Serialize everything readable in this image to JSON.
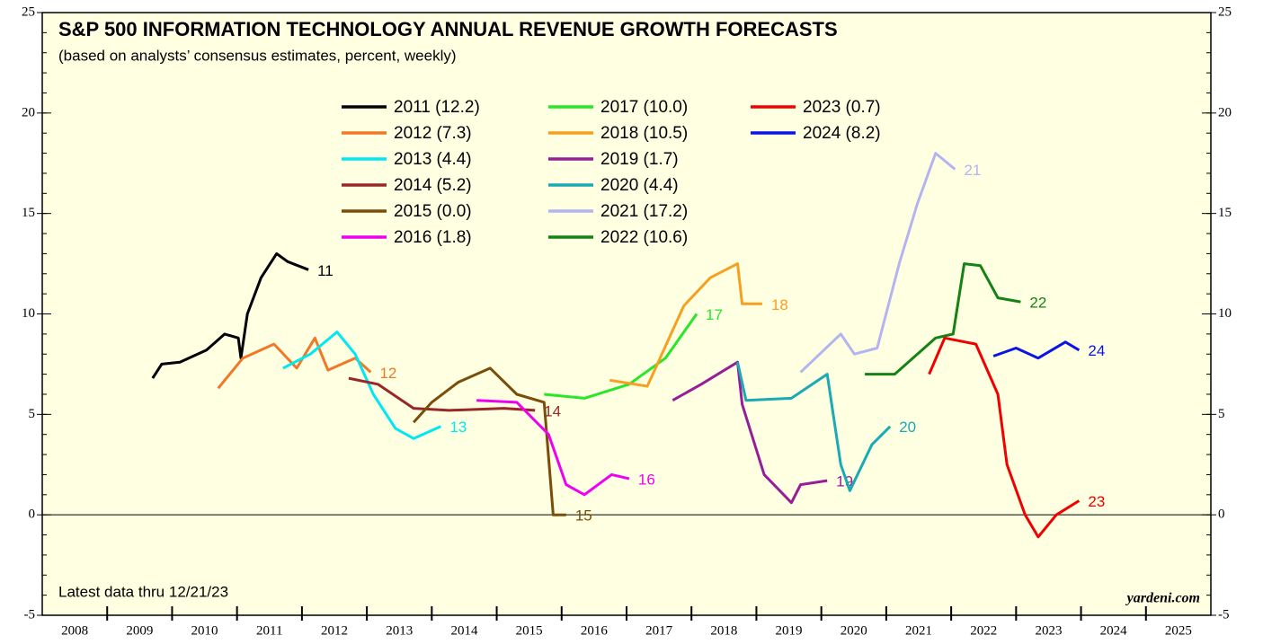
{
  "chart_data": {
    "type": "line",
    "title": "S&P 500 INFORMATION TECHNOLOGY ANNUAL REVENUE GROWTH FORECASTS",
    "subtitle": "(based on analysts’ consensus estimates, percent, weekly)",
    "annotations": [
      "Latest data thru 12/21/23",
      "yardeni.com"
    ],
    "xlim": [
      2008,
      2026
    ],
    "xticks": [
      {
        "value": 2008.5,
        "label": "2008"
      },
      {
        "value": 2009.5,
        "label": "2009"
      },
      {
        "value": 2010.5,
        "label": "2010"
      },
      {
        "value": 2011.5,
        "label": "2011"
      },
      {
        "value": 2012.5,
        "label": "2012"
      },
      {
        "value": 2013.5,
        "label": "2013"
      },
      {
        "value": 2014.5,
        "label": "2014"
      },
      {
        "value": 2015.5,
        "label": "2015"
      },
      {
        "value": 2016.5,
        "label": "2016"
      },
      {
        "value": 2017.5,
        "label": "2017"
      },
      {
        "value": 2018.5,
        "label": "2018"
      },
      {
        "value": 2019.5,
        "label": "2019"
      },
      {
        "value": 2020.5,
        "label": "2020"
      },
      {
        "value": 2021.5,
        "label": "2021"
      },
      {
        "value": 2022.5,
        "label": "2022"
      },
      {
        "value": 2023.5,
        "label": "2023"
      },
      {
        "value": 2024.5,
        "label": "2024"
      },
      {
        "value": 2025.5,
        "label": "2025"
      }
    ],
    "ylim": [
      -5,
      25
    ],
    "yticks": [
      -5,
      0,
      5,
      10,
      15,
      20,
      25
    ],
    "series": [
      {
        "name": "2011 (12.2)",
        "end_label": "11",
        "color": "#000000",
        "x": [
          2009.7,
          2009.84,
          2010.12,
          2010.53,
          2010.81,
          2011.02,
          2011.06,
          2011.16,
          2011.37,
          2011.61,
          2011.78,
          2012.1
        ],
        "values": [
          6.8,
          7.5,
          7.6,
          8.2,
          9.0,
          8.8,
          7.8,
          10.0,
          11.8,
          13.0,
          12.6,
          12.2
        ]
      },
      {
        "name": "2012 (7.3)",
        "end_label": "12",
        "color": "#f07828",
        "x": [
          2010.71,
          2011.09,
          2011.57,
          2011.92,
          2012.2,
          2012.4,
          2012.82,
          2013.06
        ],
        "values": [
          6.3,
          7.8,
          8.5,
          7.3,
          8.8,
          7.2,
          7.8,
          7.1
        ]
      },
      {
        "name": "2013 (4.4)",
        "end_label": "13",
        "color": "#00e8f0",
        "x": [
          2011.71,
          2012.13,
          2012.54,
          2012.82,
          2013.1,
          2013.44,
          2013.72,
          2014.14
        ],
        "values": [
          7.3,
          8.0,
          9.1,
          8.0,
          6.0,
          4.3,
          3.8,
          4.4
        ]
      },
      {
        "name": "2014 (5.2)",
        "end_label": "14",
        "color": "#962828",
        "x": [
          2012.72,
          2013.17,
          2013.72,
          2014.27,
          2015.11,
          2015.59
        ],
        "values": [
          6.8,
          6.5,
          5.3,
          5.2,
          5.3,
          5.2
        ]
      },
      {
        "name": "2015 (0.0)",
        "end_label": "15",
        "color": "#7a4e0a",
        "x": [
          2013.72,
          2014.0,
          2014.41,
          2014.9,
          2015.31,
          2015.73,
          2015.87,
          2016.07
        ],
        "values": [
          4.6,
          5.6,
          6.6,
          7.3,
          6.0,
          5.6,
          0.0,
          0.0
        ]
      },
      {
        "name": "2016 (1.8)",
        "end_label": "16",
        "color": "#f000f0",
        "x": [
          2014.69,
          2015.31,
          2015.8,
          2016.07,
          2016.35,
          2016.77,
          2017.04
        ],
        "values": [
          5.7,
          5.6,
          4.0,
          1.5,
          1.0,
          2.0,
          1.8
        ]
      },
      {
        "name": "2017 (10.0)",
        "end_label": "17",
        "color": "#28e628",
        "x": [
          2015.73,
          2016.35,
          2017.04,
          2017.6,
          2018.08
        ],
        "values": [
          6.0,
          5.8,
          6.5,
          7.8,
          10.0
        ]
      },
      {
        "name": "2018 (10.5)",
        "end_label": "18",
        "color": "#f5a020",
        "x": [
          2016.74,
          2017.32,
          2017.88,
          2018.29,
          2018.71,
          2018.78,
          2019.09
        ],
        "values": [
          6.7,
          6.4,
          10.4,
          11.8,
          12.5,
          10.5,
          10.5
        ]
      },
      {
        "name": "2019 (1.7)",
        "end_label": "19",
        "color": "#961e96",
        "x": [
          2017.71,
          2018.15,
          2018.71,
          2018.78,
          2019.12,
          2019.54,
          2019.68,
          2020.09
        ],
        "values": [
          5.7,
          6.5,
          7.6,
          5.5,
          2.0,
          0.6,
          1.5,
          1.7
        ]
      },
      {
        "name": "2020 (4.4)",
        "end_label": "20",
        "color": "#19aab4",
        "x": [
          2018.71,
          2018.84,
          2019.54,
          2020.09,
          2020.3,
          2020.44,
          2020.78,
          2021.06
        ],
        "values": [
          7.6,
          5.7,
          5.8,
          7.0,
          2.5,
          1.2,
          3.5,
          4.4
        ]
      },
      {
        "name": "2021 (17.2)",
        "end_label": "21",
        "color": "#b4b4f0",
        "x": [
          2019.68,
          2020.3,
          2020.51,
          2020.86,
          2021.2,
          2021.48,
          2021.76,
          2022.06
        ],
        "values": [
          7.1,
          9.0,
          8.0,
          8.3,
          12.5,
          15.5,
          18.0,
          17.2
        ]
      },
      {
        "name": "2022 (10.6)",
        "end_label": "22",
        "color": "#148214",
        "x": [
          2020.67,
          2021.13,
          2021.76,
          2022.03,
          2022.2,
          2022.45,
          2022.72,
          2023.07
        ],
        "values": [
          7.0,
          7.0,
          8.8,
          9.0,
          12.5,
          12.4,
          10.8,
          10.6
        ]
      },
      {
        "name": "2023 (0.7)",
        "end_label": "23",
        "color": "#f00000",
        "x": [
          2021.66,
          2021.9,
          2022.38,
          2022.72,
          2022.86,
          2023.14,
          2023.34,
          2023.62,
          2023.97
        ],
        "values": [
          7.0,
          8.8,
          8.5,
          6.0,
          2.5,
          0.0,
          -1.1,
          0.0,
          0.7
        ]
      },
      {
        "name": "2024 (8.2)",
        "end_label": "24",
        "color": "#0a14e6",
        "x": [
          2022.65,
          2023.0,
          2023.34,
          2023.76,
          2023.97
        ],
        "values": [
          7.9,
          8.3,
          7.8,
          8.6,
          8.2
        ]
      }
    ]
  }
}
